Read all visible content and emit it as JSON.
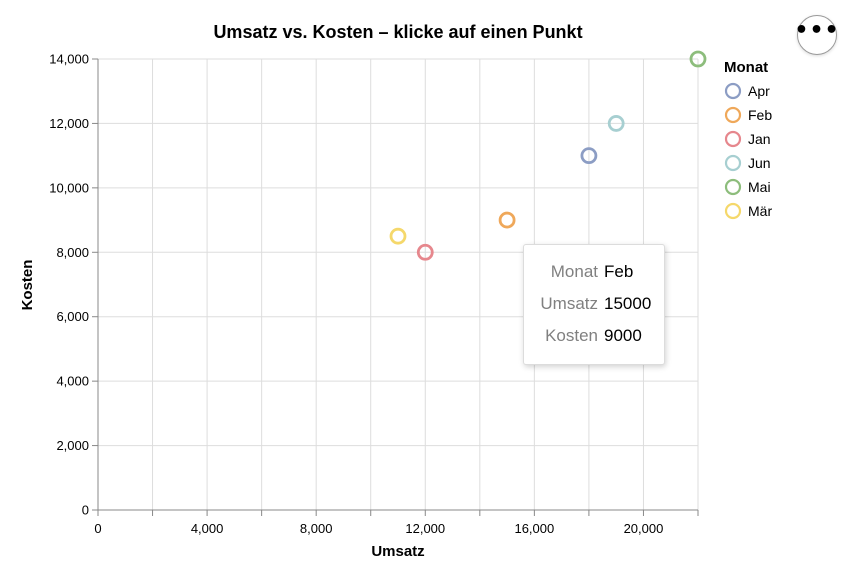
{
  "chart_data": {
    "type": "scatter",
    "title": "Umsatz vs. Kosten – klicke auf einen Punkt",
    "xlabel": "Umsatz",
    "ylabel": "Kosten",
    "xlim": [
      0,
      22000
    ],
    "ylim": [
      0,
      14000
    ],
    "x_ticks": [
      0,
      2000,
      4000,
      6000,
      8000,
      10000,
      12000,
      14000,
      16000,
      18000,
      20000,
      22000
    ],
    "x_tick_labels": [
      "0",
      "",
      "4,000",
      "",
      "8,000",
      "",
      "12,000",
      "",
      "16,000",
      "",
      "20,000",
      ""
    ],
    "y_ticks": [
      0,
      2000,
      4000,
      6000,
      8000,
      10000,
      12000,
      14000
    ],
    "y_tick_labels": [
      "0",
      "2,000",
      "4,000",
      "6,000",
      "8,000",
      "10,000",
      "12,000",
      "14,000"
    ],
    "grid": true,
    "legend_title": "Monat",
    "legend_position": "right",
    "legend": [
      {
        "label": "Apr",
        "color": "#8c9dc4"
      },
      {
        "label": "Feb",
        "color": "#efa85a"
      },
      {
        "label": "Jan",
        "color": "#e6878d"
      },
      {
        "label": "Jun",
        "color": "#a7cfd1"
      },
      {
        "label": "Mai",
        "color": "#8dbd7c"
      },
      {
        "label": "Mär",
        "color": "#f5d86b"
      }
    ],
    "points": [
      {
        "monat": "Jan",
        "x": 12000,
        "y": 8000
      },
      {
        "monat": "Feb",
        "x": 15000,
        "y": 9000
      },
      {
        "monat": "Mär",
        "x": 11000,
        "y": 8500
      },
      {
        "monat": "Apr",
        "x": 18000,
        "y": 11000
      },
      {
        "monat": "Mai",
        "x": 22000,
        "y": 14000
      },
      {
        "monat": "Jun",
        "x": 19000,
        "y": 12000
      }
    ]
  },
  "tooltip": {
    "rows": [
      {
        "key": "Monat",
        "value": "Feb"
      },
      {
        "key": "Umsatz",
        "value": "15000"
      },
      {
        "key": "Kosten",
        "value": "9000"
      }
    ]
  },
  "actions": {
    "icon": "more-horizontal-icon",
    "label": "•••"
  }
}
